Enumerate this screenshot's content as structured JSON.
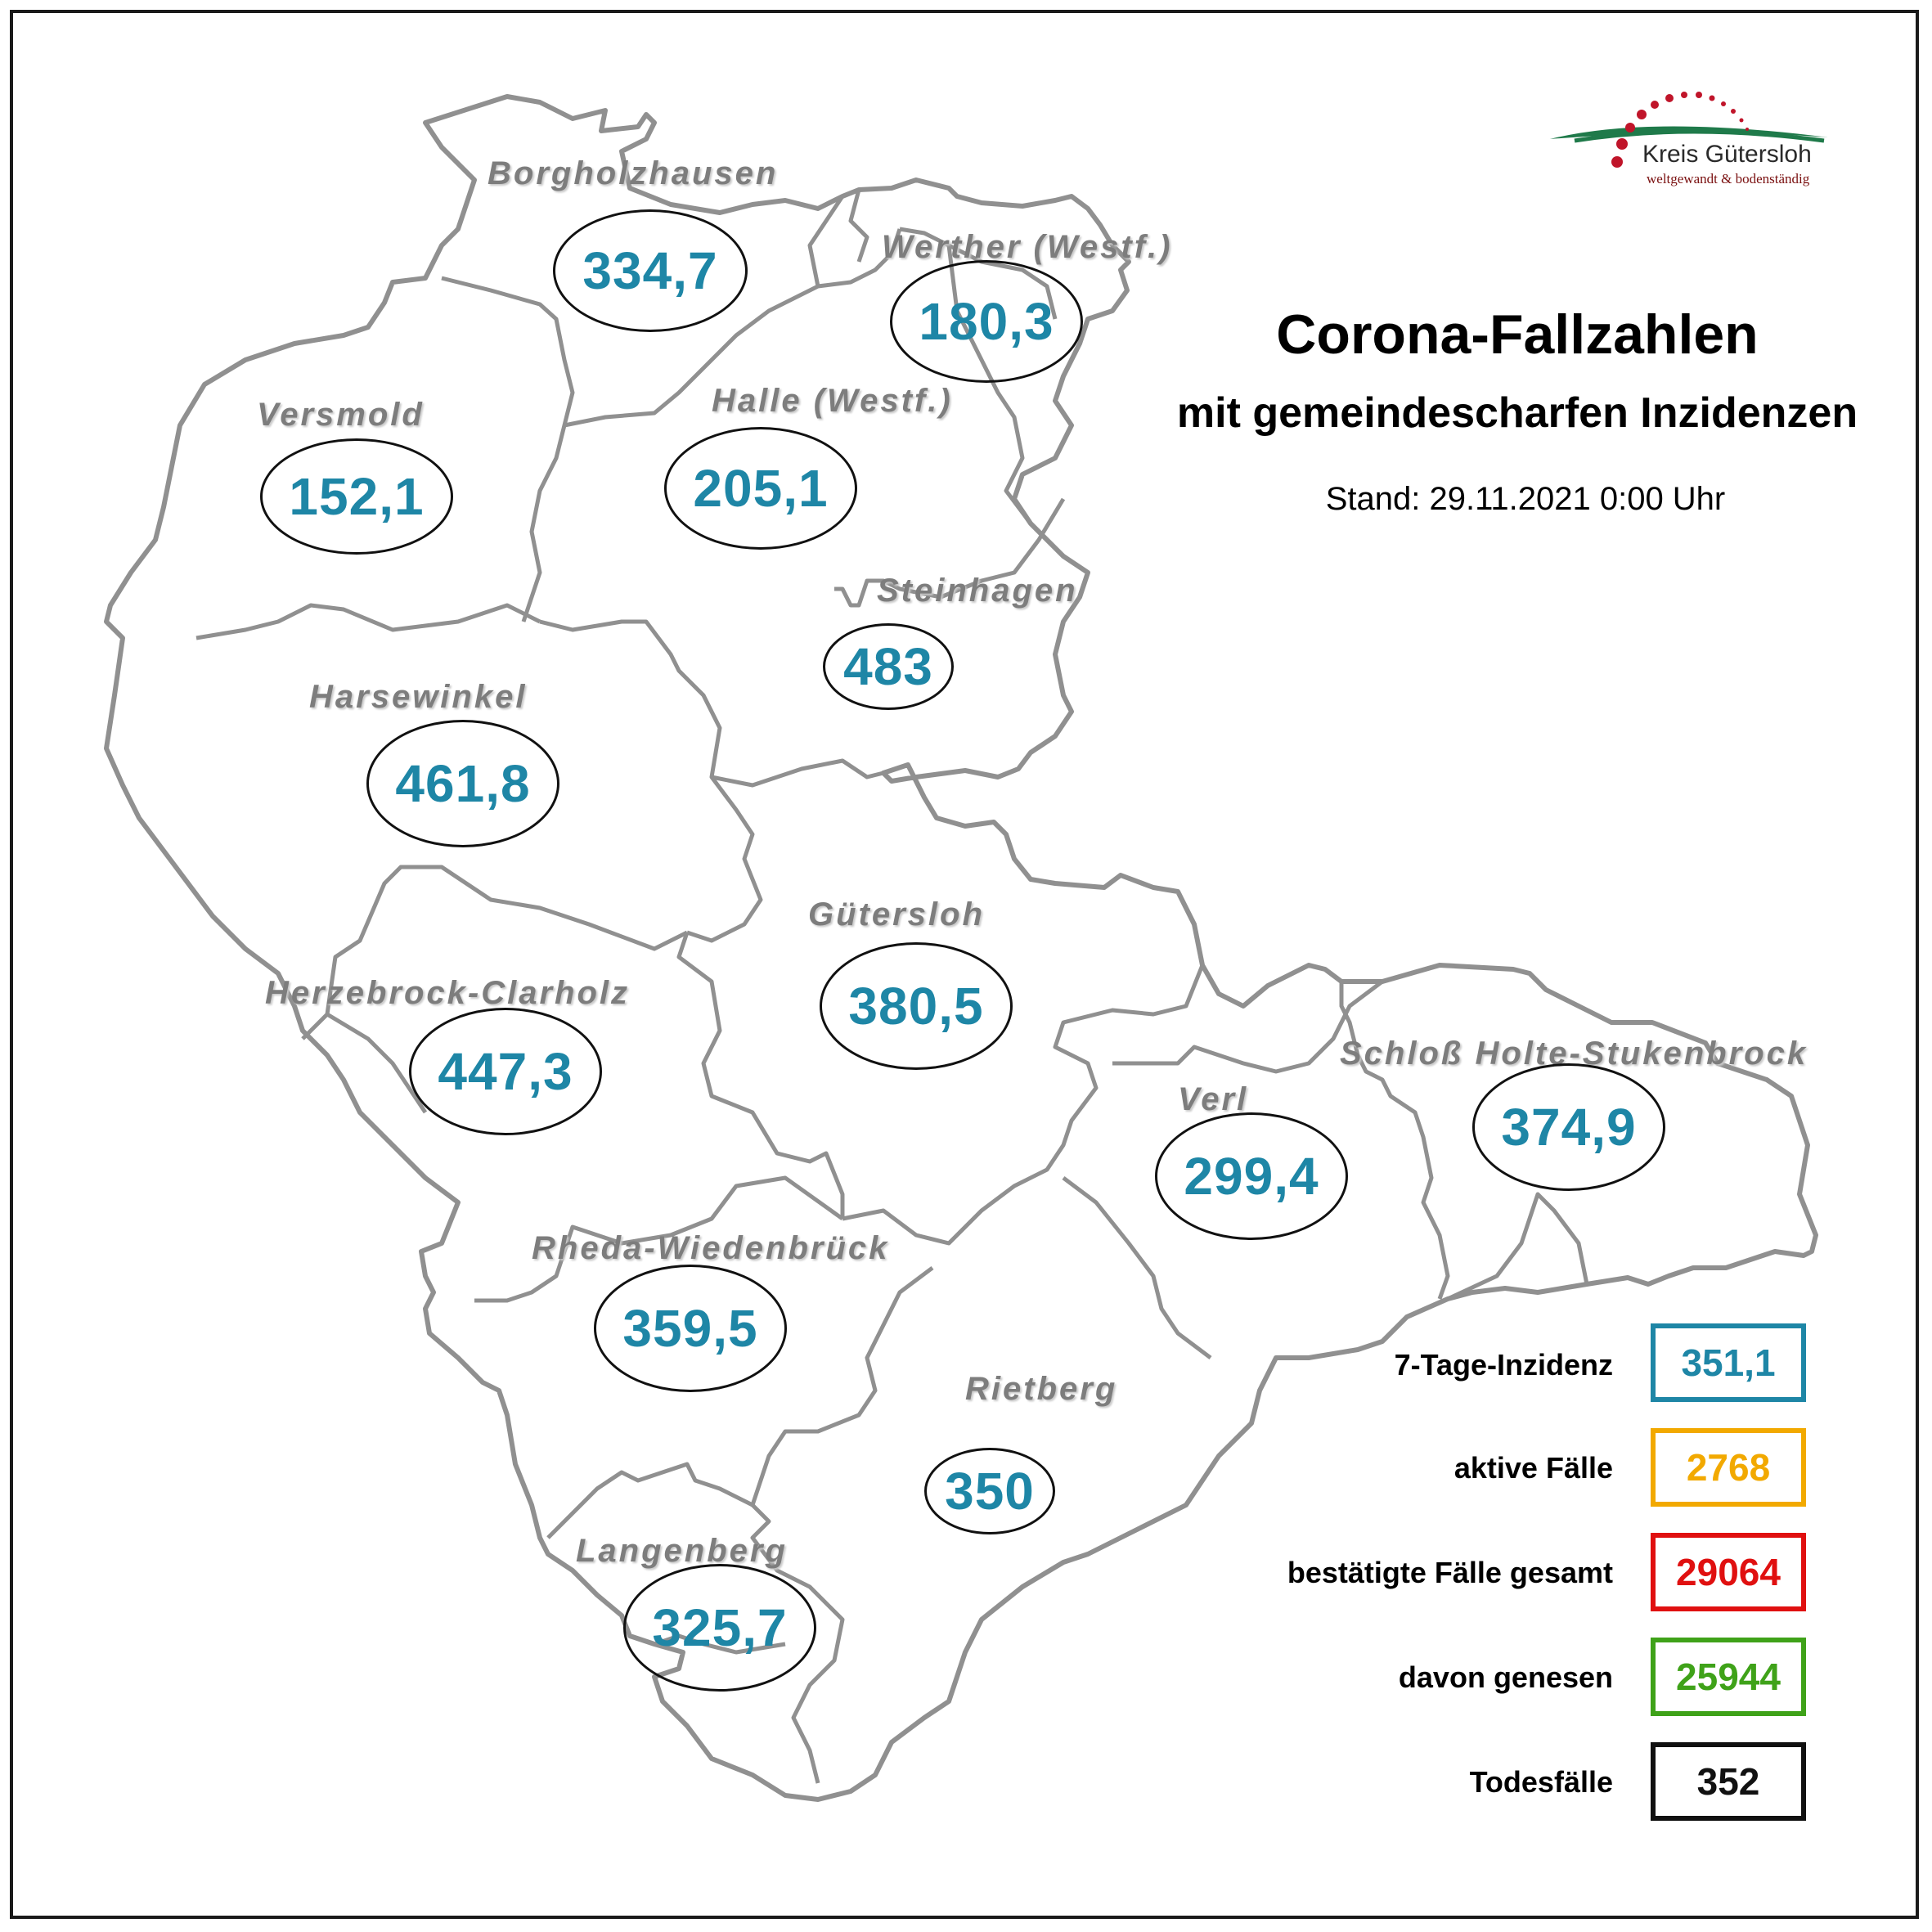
{
  "title": "Corona-Fallzahlen",
  "subtitle": "mit gemeindescharfen Inzidenzen",
  "stand": "Stand: 29.11.2021 0:00 Uhr",
  "logo": {
    "name": "Kreis Gütersloh",
    "tagline": "weltgewandt & bodenständig"
  },
  "municipalities": [
    {
      "name": "Borgholzhausen",
      "value": "334,7"
    },
    {
      "name": "Werther (Westf.)",
      "value": "180,3"
    },
    {
      "name": "Versmold",
      "value": "152,1"
    },
    {
      "name": "Halle (Westf.)",
      "value": "205,1"
    },
    {
      "name": "Steinhagen",
      "value": "483"
    },
    {
      "name": "Harsewinkel",
      "value": "461,8"
    },
    {
      "name": "Gütersloh",
      "value": "380,5"
    },
    {
      "name": "Herzebrock-Clarholz",
      "value": "447,3"
    },
    {
      "name": "Verl",
      "value": "299,4"
    },
    {
      "name": "Schloß Holte-Stukenbrock",
      "value": "374,9"
    },
    {
      "name": "Rheda-Wiedenbrück",
      "value": "359,5"
    },
    {
      "name": "Rietberg",
      "value": "350"
    },
    {
      "name": "Langenberg",
      "value": "325,7"
    }
  ],
  "stats": [
    {
      "label": "7-Tage-Inzidenz",
      "value": "351,1",
      "color": "#1e86a6"
    },
    {
      "label": "aktive Fälle",
      "value": "2768",
      "color": "#f2a900"
    },
    {
      "label": "bestätigte Fälle gesamt",
      "value": "29064",
      "color": "#e01010"
    },
    {
      "label": "davon genesen",
      "value": "25944",
      "color": "#3fa219"
    },
    {
      "label": "Todesfälle",
      "value": "352",
      "color": "#111111"
    }
  ]
}
